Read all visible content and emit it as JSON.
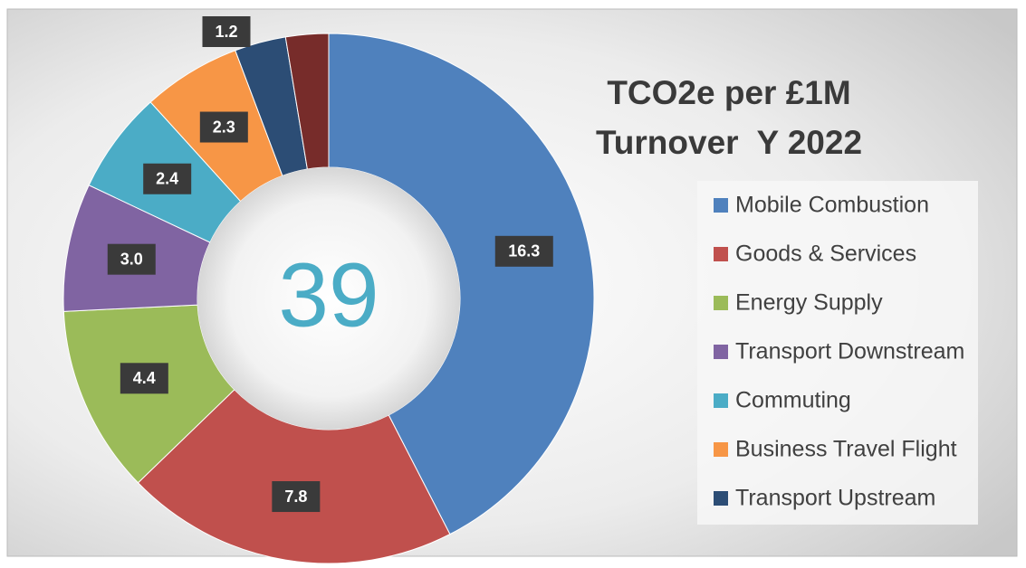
{
  "chart_data": {
    "type": "donut",
    "title": [
      "TCO2e per £1M",
      "Turnover  Y 2022"
    ],
    "center_label": 39,
    "categories": [
      "Mobile Combustion",
      "Goods & Services",
      "Energy Supply",
      "Transport Downstream",
      "Commuting",
      "Business Travel Flight",
      "Transport Upstream",
      null
    ],
    "values": [
      16.3,
      7.8,
      4.4,
      3.0,
      2.4,
      2.3,
      1.2,
      1.0
    ],
    "value_labels": [
      "16.3",
      "7.8",
      "4.4",
      "3.0",
      "2.4",
      "2.3",
      "1.2",
      null
    ],
    "colors": [
      "#4f81bd",
      "#c0504d",
      "#9bbb59",
      "#8064a2",
      "#4bacc6",
      "#f79646",
      "#2c4d75",
      "#772c2a"
    ],
    "legend": "right"
  }
}
